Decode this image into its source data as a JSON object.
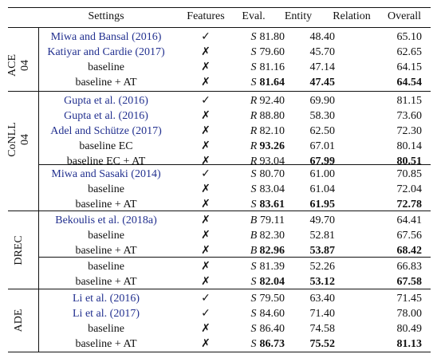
{
  "headers": {
    "settings": "Settings",
    "features": "Features",
    "eval": "Eval.",
    "entity": "Entity",
    "relation": "Relation",
    "overall": "Overall"
  },
  "groups": [
    {
      "label_line1": "ACE",
      "label_line2": "04"
    },
    {
      "label_line1": "CoNLL",
      "label_line2": "04"
    },
    {
      "label_line1": "DREC",
      "label_line2": ""
    },
    {
      "label_line1": "ADE",
      "label_line2": ""
    }
  ],
  "rows": [
    {
      "setting": "Miwa and Bansal (2016)",
      "cite": true,
      "features": "✓",
      "eval": "S",
      "entity": "81.80",
      "relation": "48.40",
      "overall": "65.10",
      "bold": []
    },
    {
      "setting": "Katiyar and Cardie (2017)",
      "cite": true,
      "features": "✗",
      "eval": "S",
      "entity": "79.60",
      "relation": "45.70",
      "overall": "62.65",
      "bold": []
    },
    {
      "setting": "baseline",
      "cite": false,
      "features": "✗",
      "eval": "S",
      "entity": "81.16",
      "relation": "47.14",
      "overall": "64.15",
      "bold": []
    },
    {
      "setting": "baseline + AT",
      "cite": false,
      "features": "✗",
      "eval": "S",
      "entity": "81.64",
      "relation": "47.45",
      "overall": "64.54",
      "bold": [
        "entity",
        "relation",
        "overall"
      ]
    },
    {
      "setting": "Gupta et al. (2016)",
      "cite": true,
      "features": "✓",
      "eval": "R",
      "entity": "92.40",
      "relation": "69.90",
      "overall": "81.15",
      "bold": []
    },
    {
      "setting": "Gupta et al. (2016)",
      "cite": true,
      "features": "✗",
      "eval": "R",
      "entity": "88.80",
      "relation": "58.30",
      "overall": "73.60",
      "bold": []
    },
    {
      "setting": "Adel and Schütze (2017)",
      "cite": true,
      "features": "✗",
      "eval": "R",
      "entity": "82.10",
      "relation": "62.50",
      "overall": "72.30",
      "bold": []
    },
    {
      "setting": "baseline EC",
      "cite": false,
      "features": "✗",
      "eval": "R",
      "entity": "93.26",
      "relation": "67.01",
      "overall": "80.14",
      "bold": [
        "entity"
      ]
    },
    {
      "setting": "baseline EC + AT",
      "cite": false,
      "features": "✗",
      "eval": "R",
      "entity": "93.04",
      "relation": "67.99",
      "overall": "80.51",
      "bold": [
        "relation",
        "overall"
      ]
    },
    {
      "setting": "Miwa and Sasaki (2014)",
      "cite": true,
      "features": "✓",
      "eval": "S",
      "entity": "80.70",
      "relation": "61.00",
      "overall": "70.85",
      "bold": []
    },
    {
      "setting": "baseline",
      "cite": false,
      "features": "✗",
      "eval": "S",
      "entity": "83.04",
      "relation": "61.04",
      "overall": "72.04",
      "bold": []
    },
    {
      "setting": "baseline + AT",
      "cite": false,
      "features": "✗",
      "eval": "S",
      "entity": "83.61",
      "relation": "61.95",
      "overall": "72.78",
      "bold": [
        "entity",
        "relation",
        "overall"
      ]
    },
    {
      "setting": "Bekoulis et al. (2018a)",
      "cite": true,
      "features": "✗",
      "eval": "B",
      "entity": "79.11",
      "relation": "49.70",
      "overall": "64.41",
      "bold": []
    },
    {
      "setting": "baseline",
      "cite": false,
      "features": "✗",
      "eval": "B",
      "entity": "82.30",
      "relation": "52.81",
      "overall": "67.56",
      "bold": []
    },
    {
      "setting": "baseline + AT",
      "cite": false,
      "features": "✗",
      "eval": "B",
      "entity": "82.96",
      "relation": "53.87",
      "overall": "68.42",
      "bold": [
        "entity",
        "relation",
        "overall"
      ]
    },
    {
      "setting": "baseline",
      "cite": false,
      "features": "✗",
      "eval": "S",
      "entity": "81.39",
      "relation": "52.26",
      "overall": "66.83",
      "bold": []
    },
    {
      "setting": "baseline + AT",
      "cite": false,
      "features": "✗",
      "eval": "S",
      "entity": "82.04",
      "relation": "53.12",
      "overall": "67.58",
      "bold": [
        "entity",
        "relation",
        "overall"
      ]
    },
    {
      "setting": "Li et al. (2016)",
      "cite": true,
      "features": "✓",
      "eval": "S",
      "entity": "79.50",
      "relation": "63.40",
      "overall": "71.45",
      "bold": []
    },
    {
      "setting": "Li et al. (2017)",
      "cite": true,
      "features": "✓",
      "eval": "S",
      "entity": "84.60",
      "relation": "71.40",
      "overall": "78.00",
      "bold": []
    },
    {
      "setting": "baseline",
      "cite": false,
      "features": "✗",
      "eval": "S",
      "entity": "86.40",
      "relation": "74.58",
      "overall": "80.49",
      "bold": []
    },
    {
      "setting": "baseline + AT",
      "cite": false,
      "features": "✗",
      "eval": "S",
      "entity": "86.73",
      "relation": "75.52",
      "overall": "81.13",
      "bold": [
        "entity",
        "relation",
        "overall"
      ]
    }
  ]
}
